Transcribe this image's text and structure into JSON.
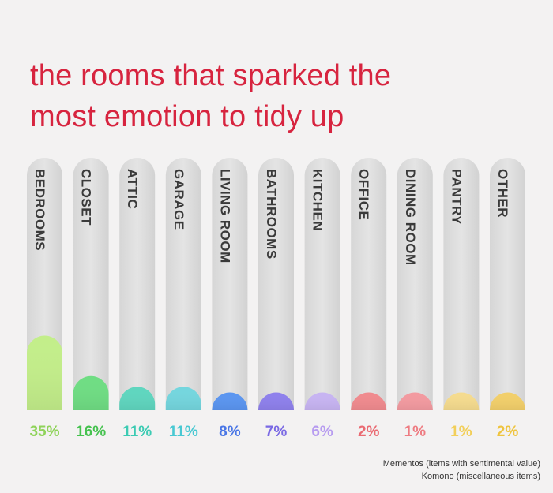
{
  "title": {
    "line1": "the rooms that sparked the",
    "line2": "most emotion to tidy up"
  },
  "chart_data": {
    "type": "bar",
    "title": "the rooms that sparked the most emotion to tidy up",
    "categories": [
      "BEDROOMS",
      "CLOSET",
      "ATTIC",
      "GARAGE",
      "LIVING ROOM",
      "BATHROOMS",
      "KITCHEN",
      "OFFICE",
      "DINING ROOM",
      "PANTRY",
      "OTHER"
    ],
    "values": [
      35,
      16,
      11,
      11,
      8,
      7,
      6,
      2,
      1,
      1,
      2
    ],
    "value_labels": [
      "35%",
      "16%",
      "11%",
      "11%",
      "8%",
      "7%",
      "6%",
      "2%",
      "1%",
      "1%",
      "2%"
    ],
    "unit": "%",
    "ylim": [
      0,
      100
    ],
    "colors": [
      "#c3ee8a",
      "#6fdd83",
      "#5fd6bf",
      "#74d6de",
      "#5a95f0",
      "#8e80ec",
      "#c7b4f2",
      "#f08a8e",
      "#f39aa0",
      "#f5db8e",
      "#f2cf6a"
    ],
    "label_colors": [
      "#8fd35a",
      "#45c24f",
      "#3ccbb3",
      "#48c8d2",
      "#4a77e6",
      "#7a69e4",
      "#b79cf0",
      "#ea6a72",
      "#ee7c82",
      "#f2cf5a",
      "#efc43e"
    ],
    "track_color": "#dcdcdc",
    "category_label_color": "#3a3a3a"
  },
  "footnote": {
    "line1": "Mementos (items with sentimental value)",
    "line2": "Komono (miscellaneous items)"
  }
}
